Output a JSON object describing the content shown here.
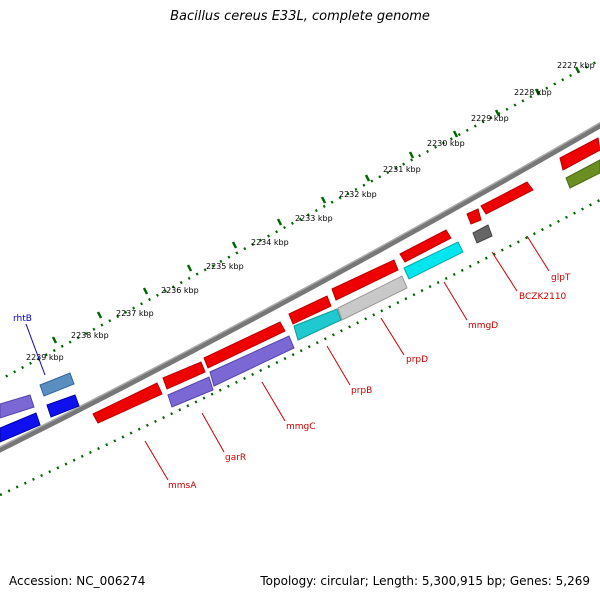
{
  "title": "Bacillus cereus E33L, complete genome",
  "footer": {
    "accession": "Accession: NC_006274",
    "stats": "Topology: circular; Length: 5,300,915 bp; Genes: 5,269"
  },
  "colors": {
    "backbone": "#666666",
    "ruler": "#006600",
    "gene_label": "#cc0000",
    "special_label": "#0000cc"
  },
  "ruler_labels": [
    "2227 kbp",
    "2228 kbp",
    "2229 kbp",
    "2230 kbp",
    "2231 kbp",
    "2232 kbp",
    "2233 kbp",
    "2234 kbp",
    "2235 kbp",
    "2236 kbp",
    "2237 kbp",
    "2238 kbp",
    "2239 kbp"
  ],
  "gene_labels": [
    {
      "name": "glpT"
    },
    {
      "name": "BCZK2110"
    },
    {
      "name": "mmgD"
    },
    {
      "name": "prpD"
    },
    {
      "name": "prpB"
    },
    {
      "name": "mmgC"
    },
    {
      "name": "garR"
    },
    {
      "name": "mmsA"
    },
    {
      "name": "rhtB"
    }
  ]
}
